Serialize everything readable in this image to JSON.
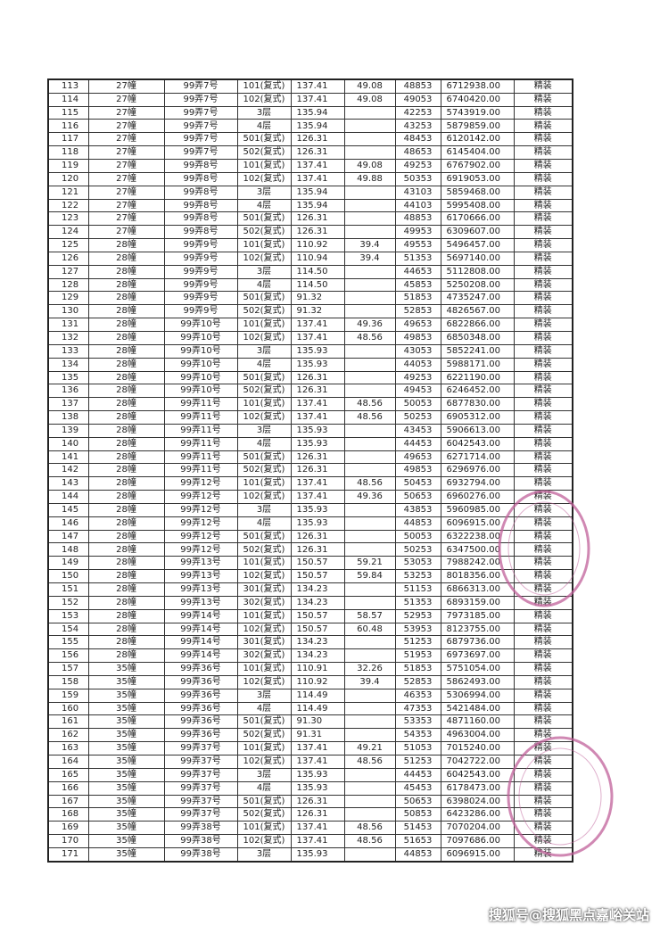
{
  "table": {
    "rows": [
      [
        "113",
        "27幢",
        "99弄7号",
        "101(复式)",
        "137.41",
        "49.08",
        "48853",
        "6712938.00",
        "精装"
      ],
      [
        "114",
        "27幢",
        "99弄7号",
        "102(复式)",
        "137.41",
        "49.08",
        "49053",
        "6740420.00",
        "精装"
      ],
      [
        "115",
        "27幢",
        "99弄7号",
        "3层",
        "135.94",
        "",
        "42253",
        "5743919.00",
        "精装"
      ],
      [
        "116",
        "27幢",
        "99弄7号",
        "4层",
        "135.94",
        "",
        "43253",
        "5879859.00",
        "精装"
      ],
      [
        "117",
        "27幢",
        "99弄7号",
        "501(复式)",
        "126.31",
        "",
        "48453",
        "6120142.00",
        "精装"
      ],
      [
        "118",
        "27幢",
        "99弄7号",
        "502(复式)",
        "126.31",
        "",
        "48653",
        "6145404.00",
        "精装"
      ],
      [
        "119",
        "27幢",
        "99弄8号",
        "101(复式)",
        "137.41",
        "49.08",
        "49253",
        "6767902.00",
        "精装"
      ],
      [
        "120",
        "27幢",
        "99弄8号",
        "102(复式)",
        "137.41",
        "49.88",
        "50353",
        "6919053.00",
        "精装"
      ],
      [
        "121",
        "27幢",
        "99弄8号",
        "3层",
        "135.94",
        "",
        "43103",
        "5859468.00",
        "精装"
      ],
      [
        "122",
        "27幢",
        "99弄8号",
        "4层",
        "135.94",
        "",
        "44103",
        "5995408.00",
        "精装"
      ],
      [
        "123",
        "27幢",
        "99弄8号",
        "501(复式)",
        "126.31",
        "",
        "48853",
        "6170666.00",
        "精装"
      ],
      [
        "124",
        "27幢",
        "99弄8号",
        "502(复式)",
        "126.31",
        "",
        "49953",
        "6309607.00",
        "精装"
      ],
      [
        "125",
        "28幢",
        "99弄9号",
        "101(复式)",
        "110.92",
        "39.4",
        "49553",
        "5496457.00",
        "精装"
      ],
      [
        "126",
        "28幢",
        "99弄9号",
        "102(复式)",
        "110.94",
        "39.4",
        "51353",
        "5697140.00",
        "精装"
      ],
      [
        "127",
        "28幢",
        "99弄9号",
        "3层",
        "114.50",
        "",
        "44653",
        "5112808.00",
        "精装"
      ],
      [
        "128",
        "28幢",
        "99弄9号",
        "4层",
        "114.50",
        "",
        "45853",
        "5250208.00",
        "精装"
      ],
      [
        "129",
        "28幢",
        "99弄9号",
        "501(复式)",
        "91.32",
        "",
        "51853",
        "4735247.00",
        "精装"
      ],
      [
        "130",
        "28幢",
        "99弄9号",
        "502(复式)",
        "91.32",
        "",
        "52853",
        "4826567.00",
        "精装"
      ],
      [
        "131",
        "28幢",
        "99弄10号",
        "101(复式)",
        "137.41",
        "49.36",
        "49653",
        "6822866.00",
        "精装"
      ],
      [
        "132",
        "28幢",
        "99弄10号",
        "102(复式)",
        "137.41",
        "48.56",
        "49853",
        "6850348.00",
        "精装"
      ],
      [
        "133",
        "28幢",
        "99弄10号",
        "3层",
        "135.93",
        "",
        "43053",
        "5852241.00",
        "精装"
      ],
      [
        "134",
        "28幢",
        "99弄10号",
        "4层",
        "135.93",
        "",
        "44053",
        "5988171.00",
        "精装"
      ],
      [
        "135",
        "28幢",
        "99弄10号",
        "501(复式)",
        "126.31",
        "",
        "49253",
        "6221190.00",
        "精装"
      ],
      [
        "136",
        "28幢",
        "99弄10号",
        "502(复式)",
        "126.31",
        "",
        "49453",
        "6246452.00",
        "精装"
      ],
      [
        "137",
        "28幢",
        "99弄11号",
        "101(复式)",
        "137.41",
        "48.56",
        "50053",
        "6877830.00",
        "精装"
      ],
      [
        "138",
        "28幢",
        "99弄11号",
        "102(复式)",
        "137.41",
        "48.56",
        "50253",
        "6905312.00",
        "精装"
      ],
      [
        "139",
        "28幢",
        "99弄11号",
        "3层",
        "135.93",
        "",
        "43453",
        "5906613.00",
        "精装"
      ],
      [
        "140",
        "28幢",
        "99弄11号",
        "4层",
        "135.93",
        "",
        "44453",
        "6042543.00",
        "精装"
      ],
      [
        "141",
        "28幢",
        "99弄11号",
        "501(复式)",
        "126.31",
        "",
        "49653",
        "6271714.00",
        "精装"
      ],
      [
        "142",
        "28幢",
        "99弄11号",
        "502(复式)",
        "126.31",
        "",
        "49853",
        "6296976.00",
        "精装"
      ],
      [
        "143",
        "28幢",
        "99弄12号",
        "101(复式)",
        "137.41",
        "48.56",
        "50453",
        "6932794.00",
        "精装"
      ],
      [
        "144",
        "28幢",
        "99弄12号",
        "102(复式)",
        "137.41",
        "49.36",
        "50653",
        "6960276.00",
        "精装"
      ],
      [
        "145",
        "28幢",
        "99弄12号",
        "3层",
        "135.93",
        "",
        "43853",
        "5960985.00",
        "精装"
      ],
      [
        "146",
        "28幢",
        "99弄12号",
        "4层",
        "135.93",
        "",
        "44853",
        "6096915.00",
        "精装"
      ],
      [
        "147",
        "28幢",
        "99弄12号",
        "501(复式)",
        "126.31",
        "",
        "50053",
        "6322238.00",
        "精装"
      ],
      [
        "148",
        "28幢",
        "99弄12号",
        "502(复式)",
        "126.31",
        "",
        "50253",
        "6347500.00",
        "精装"
      ],
      [
        "149",
        "28幢",
        "99弄13号",
        "101(复式)",
        "150.57",
        "59.21",
        "53053",
        "7988242.00",
        "精装"
      ],
      [
        "150",
        "28幢",
        "99弄13号",
        "102(复式)",
        "150.57",
        "59.84",
        "53253",
        "8018356.00",
        "精装"
      ],
      [
        "151",
        "28幢",
        "99弄13号",
        "301(复式)",
        "134.23",
        "",
        "51153",
        "6866313.00",
        "精装"
      ],
      [
        "152",
        "28幢",
        "99弄13号",
        "302(复式)",
        "134.23",
        "",
        "51353",
        "6893159.00",
        "精装"
      ],
      [
        "153",
        "28幢",
        "99弄14号",
        "101(复式)",
        "150.57",
        "58.57",
        "52953",
        "7973185.00",
        "精装"
      ],
      [
        "154",
        "28幢",
        "99弄14号",
        "102(复式)",
        "150.57",
        "60.48",
        "53953",
        "8123755.00",
        "精装"
      ],
      [
        "155",
        "28幢",
        "99弄14号",
        "301(复式)",
        "134.23",
        "",
        "51253",
        "6879736.00",
        "精装"
      ],
      [
        "156",
        "28幢",
        "99弄14号",
        "302(复式)",
        "134.23",
        "",
        "51953",
        "6973697.00",
        "精装"
      ],
      [
        "157",
        "35幢",
        "99弄36号",
        "101(复式)",
        "110.91",
        "32.26",
        "51853",
        "5751054.00",
        "精装"
      ],
      [
        "158",
        "35幢",
        "99弄36号",
        "102(复式)",
        "110.92",
        "39.4",
        "52853",
        "5862493.00",
        "精装"
      ],
      [
        "159",
        "35幢",
        "99弄36号",
        "3层",
        "114.49",
        "",
        "46353",
        "5306994.00",
        "精装"
      ],
      [
        "160",
        "35幢",
        "99弄36号",
        "4层",
        "114.49",
        "",
        "47353",
        "5421484.00",
        "精装"
      ],
      [
        "161",
        "35幢",
        "99弄36号",
        "501(复式)",
        "91.30",
        "",
        "53353",
        "4871160.00",
        "精装"
      ],
      [
        "162",
        "35幢",
        "99弄36号",
        "502(复式)",
        "91.31",
        "",
        "54353",
        "4963004.00",
        "精装"
      ],
      [
        "163",
        "35幢",
        "99弄37号",
        "101(复式)",
        "137.41",
        "49.21",
        "51053",
        "7015240.00",
        "精装"
      ],
      [
        "164",
        "35幢",
        "99弄37号",
        "102(复式)",
        "137.41",
        "48.56",
        "51253",
        "7042722.00",
        "精装"
      ],
      [
        "165",
        "35幢",
        "99弄37号",
        "3层",
        "135.93",
        "",
        "44453",
        "6042543.00",
        "精装"
      ],
      [
        "166",
        "35幢",
        "99弄37号",
        "4层",
        "135.93",
        "",
        "45453",
        "6178473.00",
        "精装"
      ],
      [
        "167",
        "35幢",
        "99弄37号",
        "501(复式)",
        "126.31",
        "",
        "50653",
        "6398024.00",
        "精装"
      ],
      [
        "168",
        "35幢",
        "99弄37号",
        "502(复式)",
        "126.31",
        "",
        "50853",
        "6423286.00",
        "精装"
      ],
      [
        "169",
        "35幢",
        "99弄38号",
        "101(复式)",
        "137.41",
        "48.56",
        "51453",
        "7070204.00",
        "精装"
      ],
      [
        "170",
        "35幢",
        "99弄38号",
        "102(复式)",
        "137.41",
        "48.56",
        "51653",
        "7097686.00",
        "精装"
      ],
      [
        "171",
        "35幢",
        "99弄38号",
        "3层",
        "135.93",
        "",
        "44853",
        "6096915.00",
        "精装"
      ]
    ]
  },
  "watermark": "搜狐号@搜狐黑点嘉峪关站",
  "colors": {
    "stamp": "#c0609a",
    "grid": "#333333"
  }
}
